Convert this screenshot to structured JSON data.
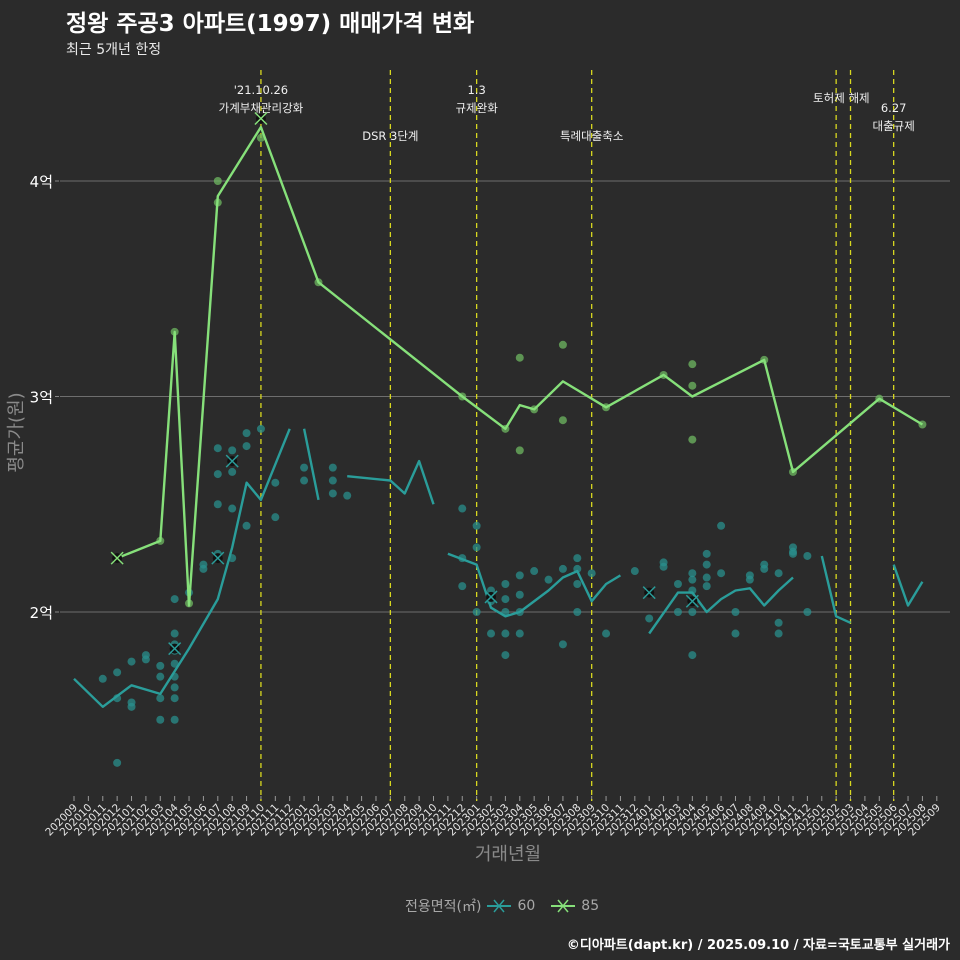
{
  "header": {
    "title": "정왕 주공3 아파트(1997) 매매가격 변화",
    "subtitle": "최근 5개년 한정"
  },
  "legend": {
    "title": "전용면적(㎡)",
    "items": [
      {
        "label": "60",
        "color": "#2a9d9a"
      },
      {
        "label": "85",
        "color": "#86e07a"
      }
    ]
  },
  "footer": "©디아파트(dapt.kr) / 2025.09.10 / 자료=국토교통부 실거래가",
  "chart_data": {
    "type": "line",
    "title": "정왕 주공3 아파트(1997) 매매가격 변화",
    "xlabel": "거래년월",
    "ylabel": "평균가(원)",
    "ylim": [
      1.15,
      4.5
    ],
    "yticks": [
      {
        "value": 2,
        "label": "2억"
      },
      {
        "value": 3,
        "label": "3억"
      },
      {
        "value": 4,
        "label": "4억"
      }
    ],
    "x_categories": [
      "202009",
      "202010",
      "202011",
      "202012",
      "202101",
      "202102",
      "202103",
      "202104",
      "202105",
      "202106",
      "202107",
      "202108",
      "202109",
      "202110",
      "202111",
      "202112",
      "202201",
      "202202",
      "202203",
      "202204",
      "202205",
      "202206",
      "202207",
      "202208",
      "202209",
      "202210",
      "202211",
      "202212",
      "202301",
      "202302",
      "202303",
      "202304",
      "202305",
      "202306",
      "202307",
      "202308",
      "202309",
      "202310",
      "202311",
      "202312",
      "202401",
      "202402",
      "202403",
      "202404",
      "202405",
      "202406",
      "202407",
      "202408",
      "202409",
      "202410",
      "202411",
      "202412",
      "202501",
      "202502",
      "202503",
      "202504",
      "202505",
      "202506",
      "202507",
      "202508",
      "202509"
    ],
    "annotations": [
      {
        "x": "202110",
        "lines": [
          "'21.10.26",
          "가계부채관리강화"
        ],
        "level": 1
      },
      {
        "x": "202207",
        "lines": [
          "DSR 3단계"
        ],
        "level": 2
      },
      {
        "x": "202301",
        "lines": [
          "1.3",
          "규제완화"
        ],
        "level": 1
      },
      {
        "x": "202309",
        "lines": [
          "특례대출축소"
        ],
        "level": 2
      },
      {
        "x": "202502",
        "lines": [
          "토허제 해제"
        ],
        "level": 1,
        "anchor_mid": "202503"
      },
      {
        "x": "202503",
        "lines": [],
        "level": 1
      },
      {
        "x": "202506",
        "lines": [
          "6.27",
          "대출규제"
        ],
        "level": 3
      }
    ],
    "series": [
      {
        "name": "60",
        "color": "#2a9d9a",
        "line": [
          [
            [
              0,
              1.69
            ],
            [
              2,
              1.56
            ],
            [
              4,
              1.66
            ],
            [
              6,
              1.62
            ],
            [
              8,
              1.83
            ],
            [
              10,
              2.06
            ],
            [
              11,
              2.3
            ],
            [
              12,
              2.6
            ],
            [
              13,
              2.52
            ],
            [
              15,
              2.85
            ]
          ],
          [
            [
              16,
              2.85
            ],
            [
              17,
              2.52
            ]
          ],
          [
            [
              19,
              2.63
            ],
            [
              22,
              2.61
            ],
            [
              23,
              2.55
            ],
            [
              24,
              2.7
            ],
            [
              25,
              2.5
            ]
          ],
          [
            [
              26,
              2.27
            ],
            [
              28,
              2.22
            ],
            [
              29,
              2.02
            ],
            [
              30,
              1.98
            ],
            [
              31,
              2.0
            ],
            [
              33,
              2.1
            ],
            [
              34,
              2.16
            ],
            [
              35,
              2.19
            ],
            [
              36,
              2.05
            ],
            [
              37,
              2.13
            ],
            [
              38,
              2.17
            ]
          ],
          [
            [
              40,
              1.9
            ],
            [
              42,
              2.09
            ],
            [
              43,
              2.09
            ],
            [
              44,
              2.0
            ],
            [
              45,
              2.06
            ],
            [
              46,
              2.1
            ],
            [
              47,
              2.11
            ],
            [
              48,
              2.03
            ],
            [
              49,
              2.1
            ],
            [
              50,
              2.16
            ]
          ],
          [
            [
              52,
              2.26
            ],
            [
              53,
              1.98
            ],
            [
              54,
              1.95
            ]
          ],
          [
            [
              57,
              2.22
            ],
            [
              58,
              2.03
            ],
            [
              59,
              2.14
            ]
          ]
        ],
        "points": [
          [
            2,
            1.69
          ],
          [
            3,
            1.72
          ],
          [
            3,
            1.6
          ],
          [
            3,
            1.3
          ],
          [
            4,
            1.77
          ],
          [
            4,
            1.58
          ],
          [
            4,
            1.56
          ],
          [
            5,
            1.8
          ],
          [
            5,
            1.78
          ],
          [
            6,
            1.75
          ],
          [
            6,
            1.7
          ],
          [
            6,
            1.6
          ],
          [
            6,
            1.5
          ],
          [
            7,
            2.06
          ],
          [
            7,
            1.9
          ],
          [
            7,
            1.85
          ],
          [
            7,
            1.82
          ],
          [
            7,
            1.76
          ],
          [
            7,
            1.7
          ],
          [
            7,
            1.65
          ],
          [
            7,
            1.6
          ],
          [
            7,
            1.5
          ],
          [
            8,
            2.09
          ],
          [
            9,
            2.2
          ],
          [
            9,
            2.22
          ],
          [
            10,
            2.27
          ],
          [
            10,
            2.5
          ],
          [
            10,
            2.64
          ],
          [
            10,
            2.76
          ],
          [
            11,
            2.75
          ],
          [
            11,
            2.48
          ],
          [
            11,
            2.65
          ],
          [
            11,
            2.25
          ],
          [
            12,
            2.77
          ],
          [
            12,
            2.83
          ],
          [
            12,
            2.4
          ],
          [
            13,
            2.85
          ],
          [
            14,
            2.6
          ],
          [
            14,
            2.44
          ],
          [
            16,
            2.67
          ],
          [
            16,
            2.61
          ],
          [
            18,
            2.67
          ],
          [
            18,
            2.61
          ],
          [
            18,
            2.55
          ],
          [
            19,
            2.54
          ],
          [
            27,
            2.48
          ],
          [
            27,
            2.25
          ],
          [
            27,
            2.12
          ],
          [
            28,
            2.4
          ],
          [
            28,
            2.3
          ],
          [
            28,
            2.0
          ],
          [
            29,
            2.1
          ],
          [
            29,
            2.05
          ],
          [
            29,
            1.9
          ],
          [
            30,
            2.13
          ],
          [
            30,
            2.06
          ],
          [
            30,
            2.0
          ],
          [
            30,
            1.9
          ],
          [
            30,
            1.8
          ],
          [
            31,
            2.17
          ],
          [
            31,
            2.08
          ],
          [
            31,
            2.0
          ],
          [
            31,
            1.9
          ],
          [
            32,
            2.19
          ],
          [
            33,
            2.15
          ],
          [
            34,
            2.2
          ],
          [
            34,
            1.85
          ],
          [
            35,
            2.2
          ],
          [
            35,
            2.25
          ],
          [
            35,
            2.13
          ],
          [
            35,
            2.0
          ],
          [
            36,
            2.18
          ],
          [
            37,
            1.9
          ],
          [
            39,
            2.19
          ],
          [
            40,
            1.97
          ],
          [
            41,
            2.21
          ],
          [
            41,
            2.23
          ],
          [
            42,
            2.13
          ],
          [
            42,
            2.0
          ],
          [
            43,
            2.18
          ],
          [
            43,
            2.15
          ],
          [
            43,
            2.1
          ],
          [
            43,
            2.0
          ],
          [
            43,
            1.8
          ],
          [
            44,
            2.27
          ],
          [
            44,
            2.22
          ],
          [
            44,
            2.16
          ],
          [
            44,
            2.12
          ],
          [
            45,
            2.4
          ],
          [
            45,
            2.18
          ],
          [
            46,
            2.0
          ],
          [
            46,
            1.9
          ],
          [
            47,
            2.17
          ],
          [
            47,
            2.15
          ],
          [
            48,
            2.2
          ],
          [
            48,
            2.22
          ],
          [
            49,
            2.18
          ],
          [
            49,
            1.95
          ],
          [
            49,
            1.9
          ],
          [
            50,
            2.28
          ],
          [
            50,
            2.3
          ],
          [
            50,
            2.27
          ],
          [
            51,
            2.26
          ],
          [
            51,
            2.0
          ]
        ],
        "x_markers": [
          [
            7,
            1.83
          ],
          [
            10,
            2.25
          ],
          [
            11,
            2.7
          ],
          [
            29,
            2.07
          ],
          [
            40,
            2.09
          ],
          [
            43,
            2.05
          ]
        ]
      },
      {
        "name": "85",
        "color": "#86e07a",
        "line": [
          [
            [
              3,
              2.25
            ],
            [
              6,
              2.33
            ],
            [
              7,
              3.3
            ],
            [
              8,
              2.03
            ],
            [
              10,
              3.93
            ],
            [
              13,
              4.25
            ],
            [
              17,
              3.53
            ],
            [
              27,
              3.0
            ],
            [
              30,
              2.85
            ],
            [
              31,
              2.96
            ],
            [
              32,
              2.94
            ],
            [
              34,
              3.07
            ],
            [
              37,
              2.95
            ],
            [
              41,
              3.1
            ],
            [
              43,
              3.0
            ],
            [
              48,
              3.17
            ],
            [
              50,
              2.65
            ],
            [
              56,
              2.99
            ],
            [
              59,
              2.87
            ]
          ]
        ],
        "points": [
          [
            6,
            2.33
          ],
          [
            7,
            3.3
          ],
          [
            8,
            2.04
          ],
          [
            10,
            4.0
          ],
          [
            10,
            3.9
          ],
          [
            13,
            4.2
          ],
          [
            17,
            3.53
          ],
          [
            27,
            3.0
          ],
          [
            30,
            2.85
          ],
          [
            31,
            3.18
          ],
          [
            31,
            2.75
          ],
          [
            32,
            2.94
          ],
          [
            34,
            3.24
          ],
          [
            34,
            2.89
          ],
          [
            37,
            2.95
          ],
          [
            41,
            3.1
          ],
          [
            43,
            3.15
          ],
          [
            43,
            3.05
          ],
          [
            43,
            2.8
          ],
          [
            48,
            3.17
          ],
          [
            50,
            2.65
          ],
          [
            56,
            2.99
          ],
          [
            59,
            2.87
          ]
        ],
        "x_markers": [
          [
            3,
            2.25
          ],
          [
            13,
            4.29
          ]
        ]
      }
    ]
  }
}
